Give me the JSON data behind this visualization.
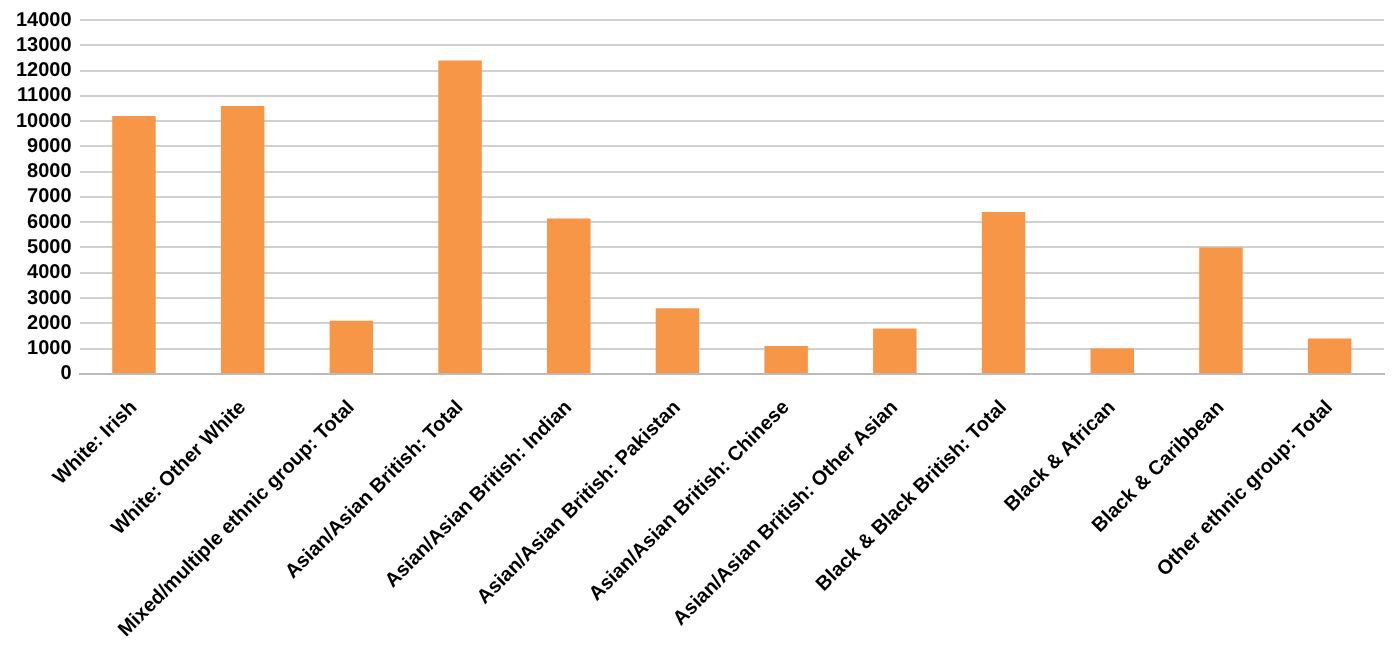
{
  "chart_data": {
    "type": "bar",
    "categories": [
      "White: Irish",
      "White: Other White",
      "Mixed/multiple ethnic group: Total",
      "Asian/Asian British: Total",
      "Asian/Asian British: Indian",
      "Asian/Asian British: Pakistan",
      "Asian/Asian British: Chinese",
      "Asian/Asian British: Other Asian",
      "Black & Black British: Total",
      "Black & African",
      "Black & Caribbean",
      "Other ethnic group: Total"
    ],
    "values": [
      10200,
      10600,
      2100,
      12400,
      6150,
      2600,
      1100,
      1800,
      6400,
      1000,
      5000,
      1400
    ],
    "color": "#f79646",
    "ylim": [
      0,
      14000
    ],
    "yticks": [
      0,
      1000,
      2000,
      3000,
      4000,
      5000,
      6000,
      7000,
      8000,
      9000,
      10000,
      11000,
      12000,
      13000,
      14000
    ],
    "grid": "y",
    "legend": false
  }
}
